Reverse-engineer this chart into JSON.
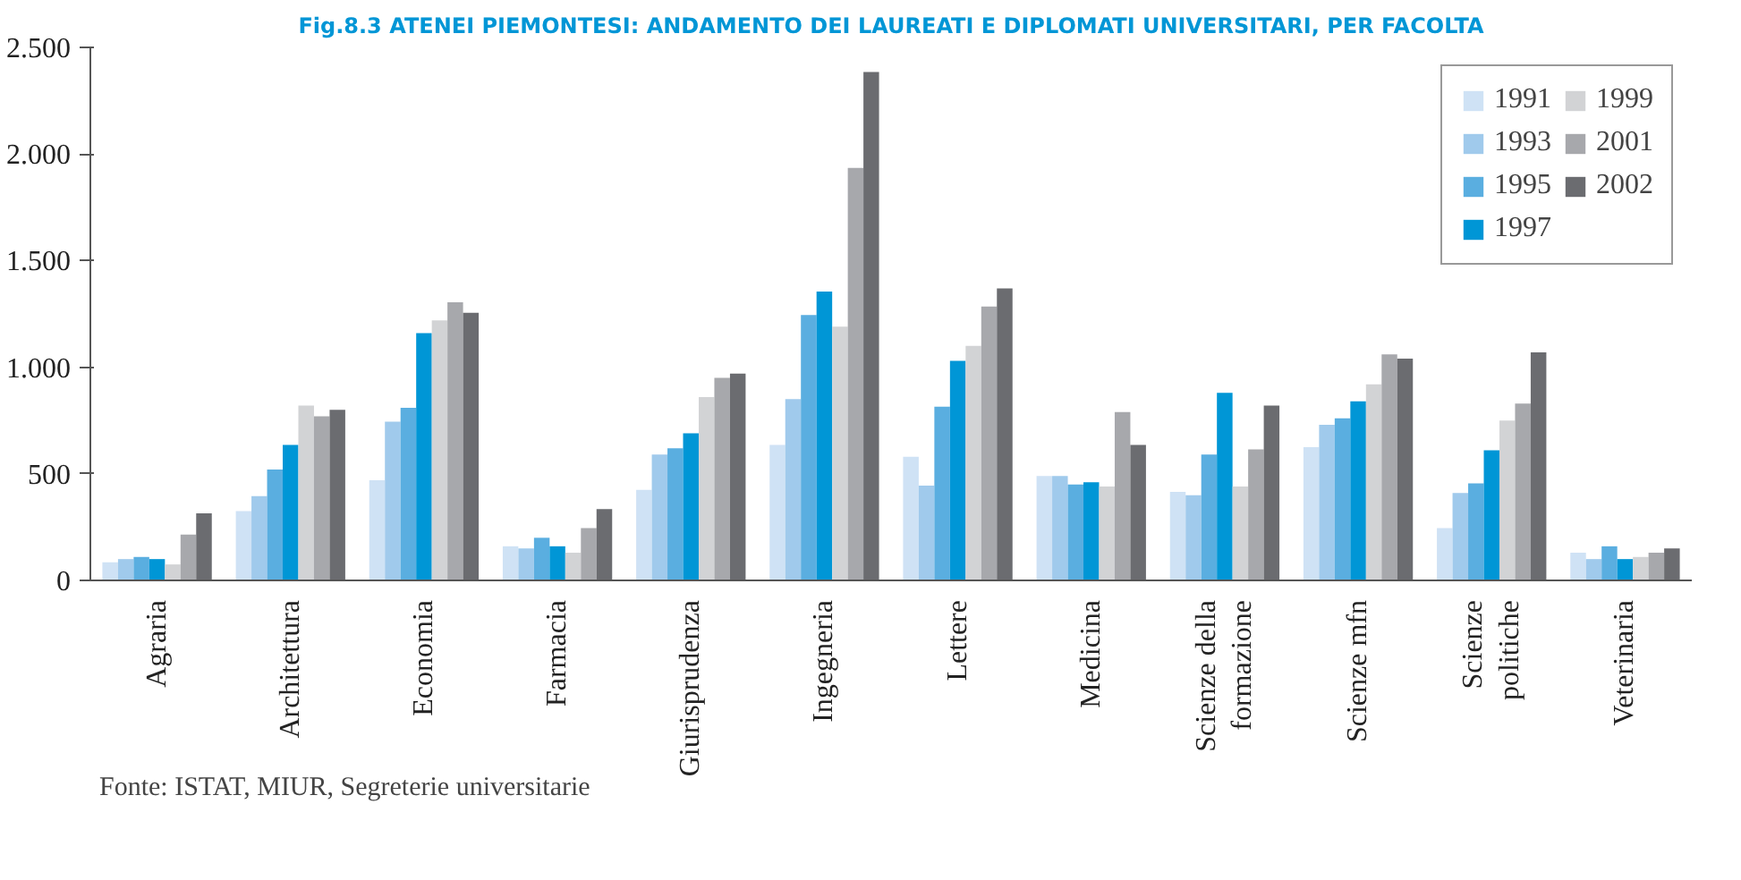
{
  "chart_data": {
    "type": "bar",
    "title": "Fig.8.3 ATENEI PIEMONTESI: ANDAMENTO DEI LAUREATI E DIPLOMATI UNIVERSITARI, PER FACOLTA",
    "categories": [
      "Agraria",
      "Architettura",
      "Economia",
      "Farmacia",
      "Giurisprudenza",
      "Ingegneria",
      "Lettere",
      "Medicina",
      "Scienze della\nformazione",
      "Scienze mfn",
      "Scienze\npolitiche",
      "Veterinaria"
    ],
    "series": [
      {
        "name": "1991",
        "color": "#cfe2f5",
        "values": [
          85,
          325,
          470,
          160,
          425,
          635,
          580,
          490,
          415,
          625,
          245,
          130
        ]
      },
      {
        "name": "1993",
        "color": "#a0caec",
        "values": [
          100,
          395,
          745,
          150,
          590,
          850,
          445,
          490,
          400,
          730,
          410,
          100
        ]
      },
      {
        "name": "1995",
        "color": "#5aaee0",
        "values": [
          110,
          520,
          810,
          200,
          620,
          1245,
          815,
          450,
          590,
          760,
          455,
          160
        ]
      },
      {
        "name": "1997",
        "color": "#0096d6",
        "values": [
          100,
          635,
          1160,
          160,
          690,
          1355,
          1030,
          460,
          880,
          840,
          610,
          100
        ]
      },
      {
        "name": "1999",
        "color": "#d2d3d5",
        "values": [
          75,
          820,
          1220,
          130,
          860,
          1190,
          1100,
          440,
          440,
          920,
          750,
          110
        ]
      },
      {
        "name": "2001",
        "color": "#a7a8ac",
        "values": [
          215,
          770,
          1305,
          245,
          950,
          1935,
          1285,
          790,
          615,
          1060,
          830,
          130
        ]
      },
      {
        "name": "2002",
        "color": "#6b6c70",
        "values": [
          315,
          800,
          1255,
          335,
          970,
          2385,
          1370,
          635,
          820,
          1040,
          1070,
          150
        ]
      }
    ],
    "ylim": [
      0,
      2500
    ],
    "yticks": [
      0,
      {
        "value": 500,
        "label": "500"
      },
      {
        "value": 1000,
        "label": "1.000"
      },
      {
        "value": 1500,
        "label": "1.500"
      },
      {
        "value": 2000,
        "label": "2.000"
      },
      {
        "value": 2500,
        "label": "2.500"
      }
    ],
    "grid": false,
    "legend": "top right",
    "annotations": [
      "Fonte: ISTAT, MIUR, Segreterie universitarie"
    ]
  }
}
